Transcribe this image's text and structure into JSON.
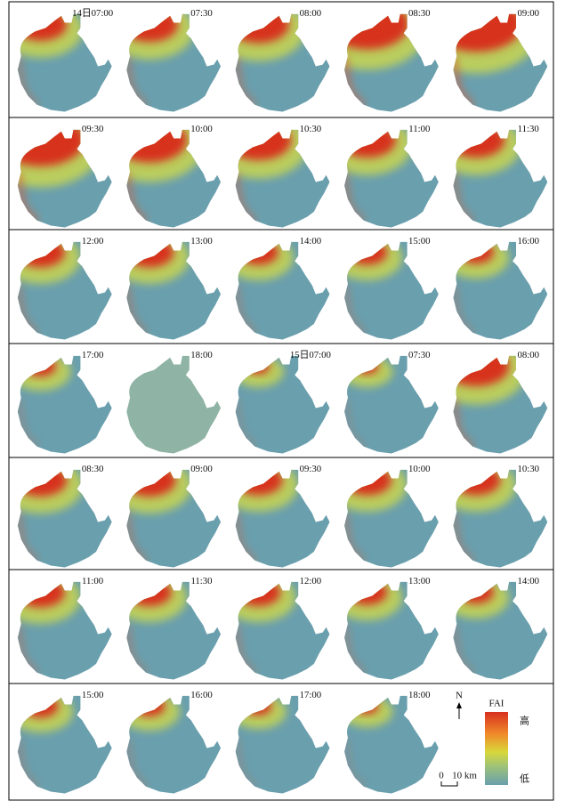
{
  "panels": [
    "14日07:00",
    "07:30",
    "08:00",
    "08:30",
    "09:00",
    "09:30",
    "10:00",
    "10:30",
    "11:00",
    "11:30",
    "12:00",
    "13:00",
    "14:00",
    "15:00",
    "16:00",
    "17:00",
    "18:00",
    "15日07:00",
    "07:30",
    "08:00",
    "08:30",
    "09:00",
    "09:30",
    "10:00",
    "10:30",
    "11:00",
    "11:30",
    "12:00",
    "13:00",
    "14:00",
    "15:00",
    "16:00",
    "17:00",
    "18:00"
  ],
  "legend": {
    "north": "N",
    "title": "FAI",
    "high": "高",
    "low": "低",
    "scale_zero": "0",
    "scale_unit": "10 km"
  }
}
